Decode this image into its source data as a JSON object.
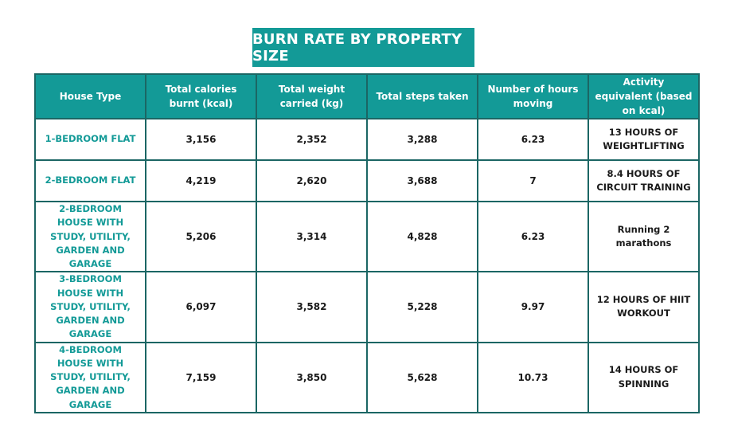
{
  "title": "BURN RATE BY PROPERTY SIZE",
  "colors": {
    "accent": "#139a97",
    "border": "#1b6664",
    "text": "#1a1a1a"
  },
  "table": {
    "headers": [
      "House Type",
      "Total calories burnt (kcal)",
      "Total weight carried (kg)",
      "Total steps taken",
      "Number of hours moving",
      "Activity equivalent (based on kcal)"
    ],
    "rows": [
      {
        "house_type": "1-BEDROOM FLAT",
        "calories": "3,156",
        "weight": "2,352",
        "steps": "3,288",
        "hours": "6.23",
        "activity": "13 HOURS OF WEIGHTLIFTING"
      },
      {
        "house_type": "2-BEDROOM FLAT",
        "calories": "4,219",
        "weight": "2,620",
        "steps": "3,688",
        "hours": "7",
        "activity": "8.4 HOURS OF CIRCUIT TRAINING"
      },
      {
        "house_type": "2-BEDROOM HOUSE WITH STUDY, UTILITY, GARDEN AND GARAGE",
        "calories": "5,206",
        "weight": "3,314",
        "steps": "4,828",
        "hours": "6.23",
        "activity": "Running 2 marathons"
      },
      {
        "house_type": "3-BEDROOM HOUSE WITH STUDY, UTILITY, GARDEN AND GARAGE",
        "calories": "6,097",
        "weight": "3,582",
        "steps": "5,228",
        "hours": "9.97",
        "activity": "12 HOURS OF HIIT WORKOUT"
      },
      {
        "house_type": "4-BEDROOM HOUSE WITH STUDY, UTILITY, GARDEN AND GARAGE",
        "calories": "7,159",
        "weight": "3,850",
        "steps": "5,628",
        "hours": "10.73",
        "activity": "14 HOURS OF SPINNING"
      }
    ]
  }
}
